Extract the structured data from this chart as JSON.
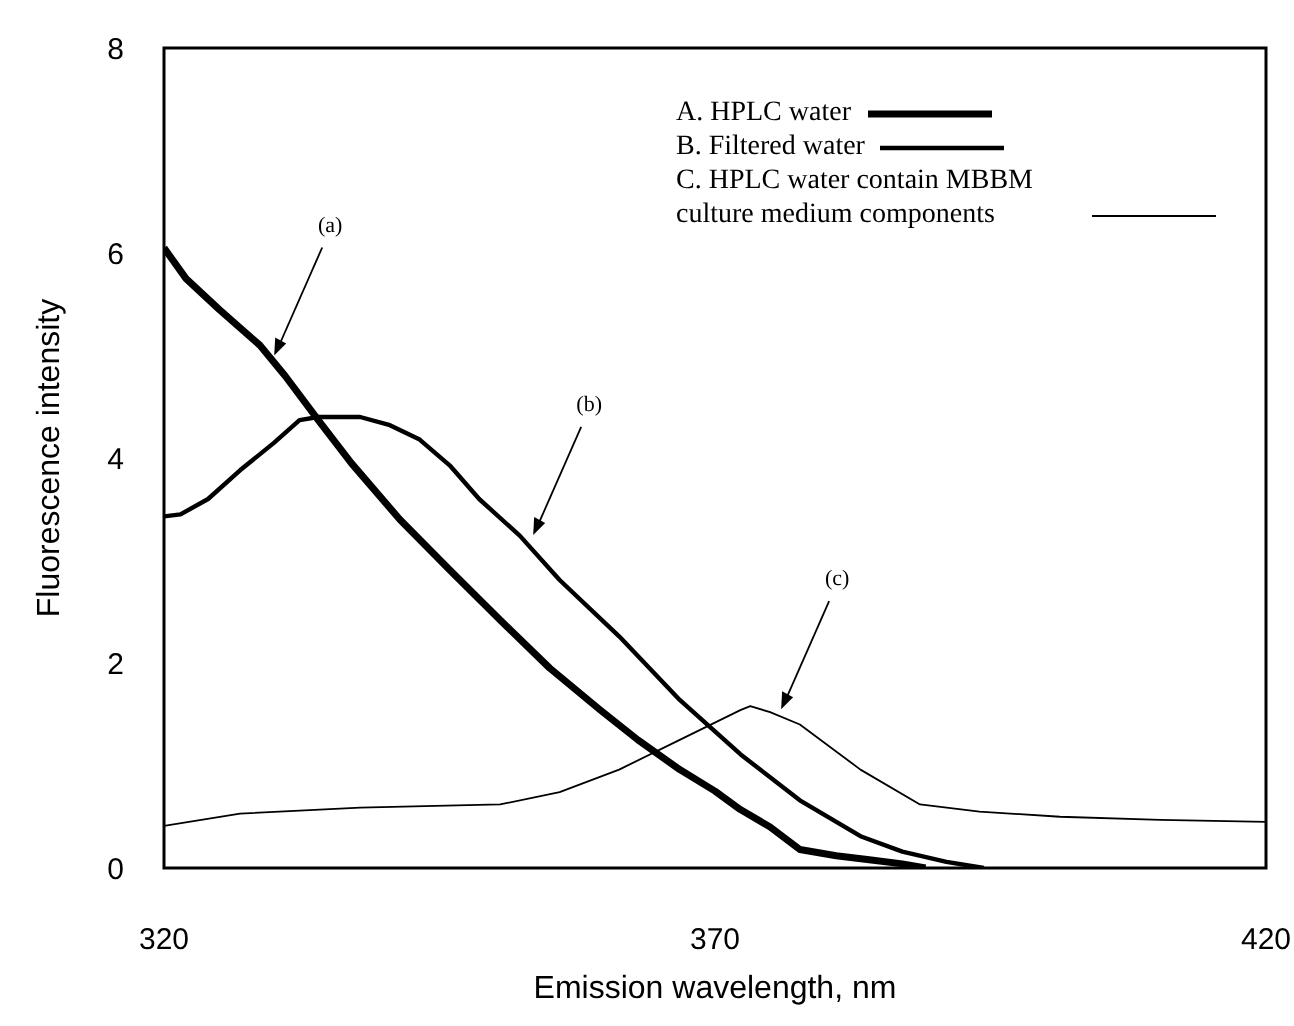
{
  "chart_data": {
    "type": "line",
    "xlabel": "Emission wavelength, nm",
    "ylabel": "Fluorescence intensity",
    "xlim": [
      320,
      420
    ],
    "xticks": [
      320,
      370,
      420
    ],
    "ylim": [
      0,
      8
    ],
    "yticks": [
      0,
      2,
      4,
      6,
      8
    ],
    "grid": false,
    "legend": "top right",
    "marker": "none",
    "line_style": "solid",
    "series": [
      {
        "name": "A. HPLC water",
        "color": "#000000",
        "x": [
          320,
          322,
          325,
          328.7,
          331,
          334,
          337,
          341.4,
          346,
          350.5,
          355,
          359.6,
          363,
          366.8,
          370,
          372.3,
          375,
          377.7,
          381,
          384,
          387,
          389.1
        ],
        "values": [
          6.05,
          5.75,
          5.45,
          5.1,
          4.8,
          4.37,
          3.95,
          3.4,
          2.9,
          2.42,
          1.95,
          1.54,
          1.25,
          0.96,
          0.75,
          0.57,
          0.4,
          0.18,
          0.12,
          0.08,
          0.04,
          0
        ]
      },
      {
        "name": "B. Filtered water",
        "color": "#000000",
        "x": [
          320,
          321.5,
          324,
          326.9,
          330,
          332.3,
          334,
          337.8,
          340.5,
          343.2,
          346,
          348.6,
          352.3,
          355.9,
          361.3,
          366.8,
          372.3,
          377.7,
          383.2,
          387,
          391,
          394.4
        ],
        "values": [
          3.43,
          3.45,
          3.6,
          3.88,
          4.15,
          4.37,
          4.4,
          4.4,
          4.32,
          4.18,
          3.92,
          3.6,
          3.24,
          2.81,
          2.26,
          1.64,
          1.11,
          0.66,
          0.31,
          0.16,
          0.06,
          0
        ]
      },
      {
        "name": "C. HPLC water contain MBBM culture medium components",
        "color": "#000000",
        "x": [
          320,
          326.9,
          337.8,
          350.5,
          355.9,
          361.3,
          366.8,
          372.3,
          373.2,
          375,
          377.7,
          383.2,
          388.6,
          394,
          401.3,
          410.4,
          420
        ],
        "values": [
          0.41,
          0.53,
          0.59,
          0.62,
          0.74,
          0.96,
          1.25,
          1.54,
          1.58,
          1.52,
          1.4,
          0.96,
          0.62,
          0.55,
          0.5,
          0.47,
          0.45
        ]
      }
    ],
    "annotations": [
      {
        "text": "(a)",
        "x": 330,
        "y": 5
      },
      {
        "text": "(b)",
        "x": 353.5,
        "y": 3.25
      },
      {
        "text": "(c)",
        "x": 376,
        "y": 1.55
      }
    ]
  }
}
